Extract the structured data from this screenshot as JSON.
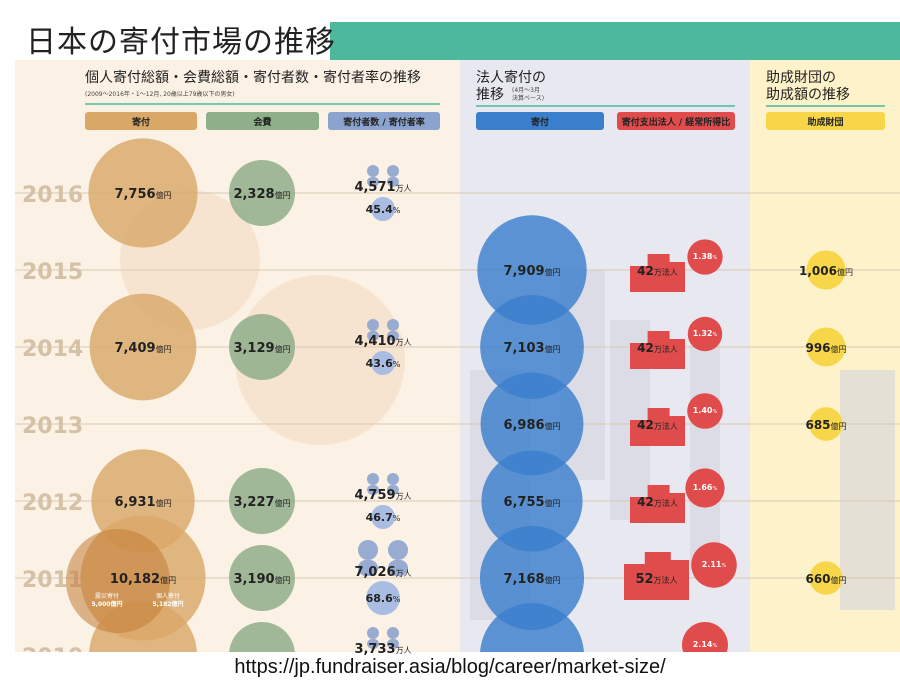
{
  "slide_title": "日本の寄付市場の推移",
  "source_url": "https://jp.fundraiser.asia/blog/career/market-size/",
  "colors": {
    "title_bar": "#4db89c",
    "donation": "#d9a766",
    "membership": "#8fae8a",
    "donors": "#8aa3cf",
    "corporate": "#3a7fcc",
    "corporate_rate": "#e04b4b",
    "foundation": "#f7d64a"
  },
  "chart_data": {
    "type": "bubble",
    "years": [
      "2016",
      "2015",
      "2014",
      "2013",
      "2012",
      "2011",
      "2010"
    ],
    "sections": {
      "individual": {
        "title": "個人寄付総額・会費総額・寄付者数・寄付者率の推移",
        "subtitle": "(2009～2016年・1～12月, 20歳以上79歳以下の男女)",
        "columns": [
          "寄付",
          "会費",
          "寄付者数 / 寄付者率"
        ]
      },
      "corporate": {
        "title_line1": "法人寄付の",
        "title_line2": "推移",
        "subtitle_line1": "(4月～3月",
        "subtitle_line2": "決算ベース)",
        "columns": [
          "寄付",
          "寄付支出法人 / 経常所得比"
        ]
      },
      "foundation": {
        "title_line1": "助成財団の",
        "title_line2": "助成額の推移",
        "columns": [
          "助成財団"
        ]
      }
    },
    "series": [
      {
        "name": "寄付",
        "unit": "億円",
        "values": [
          {
            "year": "2016",
            "value": "7,756"
          },
          {
            "year": "2014",
            "value": "7,409"
          },
          {
            "year": "2012",
            "value": "6,931"
          },
          {
            "year": "2011",
            "value": "10,182"
          },
          {
            "year": "2010",
            "value": "",
            "note": "partially visible"
          }
        ]
      },
      {
        "name": "会費",
        "unit": "億円",
        "values": [
          {
            "year": "2016",
            "value": "2,328"
          },
          {
            "year": "2014",
            "value": "3,129"
          },
          {
            "year": "2012",
            "value": "3,227"
          },
          {
            "year": "2011",
            "value": "3,190"
          },
          {
            "year": "2010",
            "value": "",
            "note": "partially visible"
          }
        ]
      },
      {
        "name": "寄付者数",
        "unit": "万人",
        "values": [
          {
            "year": "2016",
            "value": "4,571"
          },
          {
            "year": "2014",
            "value": "4,410"
          },
          {
            "year": "2012",
            "value": "4,759"
          },
          {
            "year": "2011",
            "value": "7,026"
          },
          {
            "year": "2010",
            "value": "3,733"
          }
        ]
      },
      {
        "name": "寄付者率",
        "unit": "%",
        "values": [
          {
            "year": "2016",
            "value": "45.4"
          },
          {
            "year": "2014",
            "value": "43.6"
          },
          {
            "year": "2012",
            "value": "46.7"
          },
          {
            "year": "2011",
            "value": "68.6"
          }
        ]
      },
      {
        "name": "法人寄付",
        "unit": "億円",
        "values": [
          {
            "year": "2015",
            "value": "7,909"
          },
          {
            "year": "2014",
            "value": "7,103"
          },
          {
            "year": "2013",
            "value": "6,986"
          },
          {
            "year": "2012",
            "value": "6,755"
          },
          {
            "year": "2011",
            "value": "7,168"
          },
          {
            "year": "2010",
            "value": "",
            "note": "partially visible"
          }
        ]
      },
      {
        "name": "寄付支出法人",
        "unit": "万法人",
        "values": [
          {
            "year": "2015",
            "value": "42"
          },
          {
            "year": "2014",
            "value": "42"
          },
          {
            "year": "2013",
            "value": "42"
          },
          {
            "year": "2012",
            "value": "42"
          },
          {
            "year": "2011",
            "value": "52"
          }
        ]
      },
      {
        "name": "経常所得比",
        "unit": "%",
        "values": [
          {
            "year": "2015",
            "value": "1.38"
          },
          {
            "year": "2014",
            "value": "1.32"
          },
          {
            "year": "2013",
            "value": "1.40"
          },
          {
            "year": "2012",
            "value": "1.66"
          },
          {
            "year": "2011",
            "value": "2.11"
          },
          {
            "year": "2010",
            "value": "2.14"
          }
        ]
      },
      {
        "name": "助成財団",
        "unit": "億円",
        "values": [
          {
            "year": "2015",
            "value": "1,006"
          },
          {
            "year": "2014",
            "value": "996"
          },
          {
            "year": "2013",
            "value": "685"
          },
          {
            "year": "2011",
            "value": "660"
          }
        ]
      }
    ],
    "annotations": {
      "2011_breakdown": [
        {
          "label": "震災寄付",
          "value": "5,000",
          "unit": "億円"
        },
        {
          "label": "個人寄付",
          "value": "5,182",
          "unit": "億円"
        }
      ]
    }
  }
}
